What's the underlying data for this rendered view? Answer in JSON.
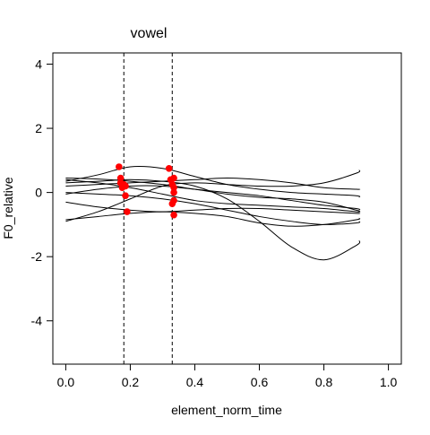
{
  "chart_data": {
    "type": "line",
    "title": "vowel",
    "xlabel": "element_norm_time",
    "ylabel": "F0_relative",
    "xlim": [
      -0.04,
      1.04
    ],
    "ylim": [
      -5.35,
      4.35
    ],
    "xticks": [
      0.0,
      0.2,
      0.4,
      0.6,
      0.8,
      1.0
    ],
    "xtick_labels": [
      "0.0",
      "0.2",
      "0.4",
      "0.6",
      "0.8",
      "1.0"
    ],
    "yticks": [
      -4,
      -2,
      0,
      2,
      4
    ],
    "ytick_labels": [
      "-4",
      "-2",
      "0",
      "2",
      "4"
    ],
    "grid": false,
    "vlines": [
      0.18,
      0.33
    ],
    "line_color": "#000000",
    "point_color": "#ff0000",
    "series": [
      {
        "x": [
          0.0,
          0.1,
          0.2,
          0.3,
          0.4,
          0.5,
          0.6,
          0.7,
          0.8,
          0.9,
          0.91
        ],
        "y": [
          0.45,
          0.42,
          0.35,
          0.25,
          0.1,
          -0.05,
          -0.15,
          -0.2,
          -0.3,
          -0.55,
          -0.6
        ]
      },
      {
        "x": [
          0.0,
          0.1,
          0.2,
          0.3,
          0.4,
          0.5,
          0.6,
          0.7,
          0.8,
          0.9,
          0.91
        ],
        "y": [
          0.3,
          0.35,
          0.4,
          0.35,
          0.2,
          -0.2,
          -0.9,
          -1.7,
          -2.1,
          -1.65,
          -1.5
        ]
      },
      {
        "x": [
          0.0,
          0.1,
          0.2,
          0.3,
          0.4,
          0.5,
          0.6,
          0.7,
          0.8,
          0.9,
          0.91
        ],
        "y": [
          -0.9,
          -0.6,
          -0.2,
          0.2,
          0.3,
          0.25,
          0.2,
          0.2,
          0.3,
          0.6,
          0.7
        ]
      },
      {
        "x": [
          0.0,
          0.1,
          0.2,
          0.3,
          0.4,
          0.5,
          0.6,
          0.7,
          0.8,
          0.9,
          0.91
        ],
        "y": [
          0.35,
          0.55,
          0.8,
          0.75,
          0.5,
          0.25,
          0.1,
          0.0,
          -0.05,
          -0.1,
          -0.15
        ]
      },
      {
        "x": [
          0.0,
          0.1,
          0.2,
          0.3,
          0.4,
          0.5,
          0.6,
          0.7,
          0.8,
          0.9,
          0.91
        ],
        "y": [
          -0.05,
          0.1,
          0.2,
          0.2,
          0.1,
          0.0,
          -0.1,
          -0.25,
          -0.4,
          -0.5,
          -0.55
        ]
      },
      {
        "x": [
          0.0,
          0.1,
          0.2,
          0.3,
          0.4,
          0.5,
          0.6,
          0.7,
          0.8,
          0.9,
          0.91
        ],
        "y": [
          0.2,
          0.25,
          0.3,
          0.35,
          0.4,
          0.45,
          0.4,
          0.3,
          0.15,
          0.1,
          0.1
        ]
      },
      {
        "x": [
          0.0,
          0.1,
          0.2,
          0.3,
          0.4,
          0.5,
          0.6,
          0.7,
          0.8,
          0.9,
          0.91
        ],
        "y": [
          -0.3,
          -0.45,
          -0.55,
          -0.6,
          -0.55,
          -0.5,
          -0.5,
          -0.55,
          -0.6,
          -0.65,
          -0.65
        ]
      },
      {
        "x": [
          0.0,
          0.1,
          0.2,
          0.3,
          0.4,
          0.5,
          0.6,
          0.7,
          0.8,
          0.9,
          0.91
        ],
        "y": [
          -0.85,
          -0.75,
          -0.65,
          -0.6,
          -0.65,
          -0.75,
          -0.95,
          -1.05,
          -1.0,
          -0.85,
          -0.8
        ]
      },
      {
        "x": [
          0.0,
          0.1,
          0.2,
          0.3,
          0.4,
          0.5,
          0.6,
          0.7,
          0.8,
          0.9,
          0.91
        ],
        "y": [
          0.4,
          0.3,
          0.15,
          -0.05,
          -0.25,
          -0.35,
          -0.4,
          -0.45,
          -0.5,
          -0.6,
          -0.6
        ]
      },
      {
        "x": [
          0.0,
          0.1,
          0.2,
          0.3,
          0.4,
          0.5,
          0.6,
          0.7,
          0.8,
          0.9,
          0.91
        ],
        "y": [
          0.0,
          -0.05,
          -0.1,
          -0.2,
          -0.35,
          -0.55,
          -0.75,
          -0.9,
          -1.0,
          -0.95,
          -0.9
        ]
      }
    ],
    "points": [
      {
        "x": 0.165,
        "y": 0.8
      },
      {
        "x": 0.17,
        "y": 0.45
      },
      {
        "x": 0.17,
        "y": 0.3
      },
      {
        "x": 0.175,
        "y": 0.15
      },
      {
        "x": 0.18,
        "y": 0.25
      },
      {
        "x": 0.185,
        "y": 0.2
      },
      {
        "x": 0.185,
        "y": -0.1
      },
      {
        "x": 0.19,
        "y": -0.6
      },
      {
        "x": 0.32,
        "y": 0.75
      },
      {
        "x": 0.325,
        "y": 0.4
      },
      {
        "x": 0.33,
        "y": 0.25
      },
      {
        "x": 0.33,
        "y": -0.35
      },
      {
        "x": 0.335,
        "y": 0.45
      },
      {
        "x": 0.335,
        "y": 0.15
      },
      {
        "x": 0.335,
        "y": 0.0
      },
      {
        "x": 0.335,
        "y": -0.25
      },
      {
        "x": 0.335,
        "y": -0.7
      }
    ]
  }
}
